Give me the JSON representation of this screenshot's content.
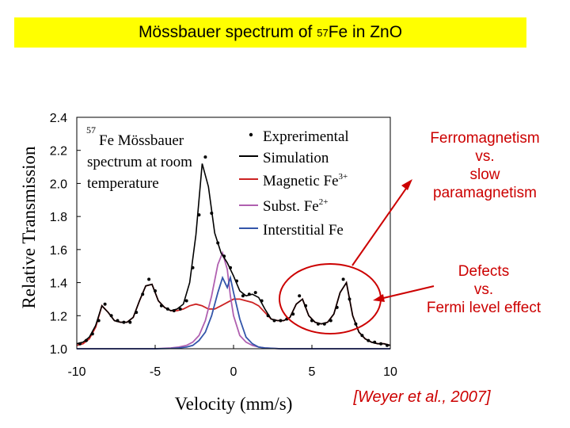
{
  "slide": {
    "title_prefix": "Mössbauer spectrum of ",
    "title_isotope": "57",
    "title_suffix": "Fe in ZnO",
    "callout_top": [
      "Ferromagnetism",
      "vs.",
      "slow",
      "paramagnetism"
    ],
    "callout_bottom": [
      "Defects",
      "vs.",
      "Fermi level effect"
    ],
    "citation": "[Weyer et al., 2007]",
    "colors": {
      "banner": "#ffff00",
      "callout": "#cc0000",
      "arrow": "#cc0000"
    }
  },
  "chart_data": {
    "type": "line",
    "title": "",
    "xlabel": "Velocity (mm/s)",
    "ylabel": "Relative Transmission",
    "xlim": [
      -10,
      10
    ],
    "ylim": [
      1.0,
      2.4
    ],
    "xticks": [
      "-10",
      "-5",
      "0",
      "5",
      "10"
    ],
    "yticks": [
      "1.0",
      "1.2",
      "1.4",
      "1.6",
      "1.8",
      "2.0",
      "2.2",
      "2.4"
    ],
    "annotation": {
      "isotope": "57",
      "line1": "Fe Mössbauer",
      "line2": "spectrum at room",
      "line3": "temperature"
    },
    "legend_position": "top-right",
    "series": [
      {
        "name": "Exprerimental",
        "style": "points",
        "color": "#000000",
        "x": [
          -9.8,
          -9.4,
          -9.0,
          -8.6,
          -8.2,
          -7.8,
          -7.4,
          -7.0,
          -6.6,
          -6.2,
          -5.8,
          -5.4,
          -5.0,
          -4.6,
          -4.2,
          -3.8,
          -3.4,
          -3.0,
          -2.6,
          -2.2,
          -1.8,
          -1.4,
          -1.0,
          -0.6,
          -0.2,
          0.2,
          0.6,
          1.0,
          1.4,
          1.8,
          2.2,
          2.6,
          3.0,
          3.4,
          3.8,
          4.2,
          4.6,
          5.0,
          5.4,
          5.8,
          6.2,
          6.6,
          7.0,
          7.4,
          7.8,
          8.2,
          8.6,
          9.0,
          9.4,
          9.8
        ],
        "y": [
          1.03,
          1.05,
          1.09,
          1.17,
          1.27,
          1.2,
          1.17,
          1.16,
          1.16,
          1.22,
          1.33,
          1.42,
          1.35,
          1.26,
          1.24,
          1.23,
          1.24,
          1.29,
          1.49,
          1.81,
          2.16,
          1.82,
          1.64,
          1.56,
          1.49,
          1.41,
          1.32,
          1.33,
          1.34,
          1.29,
          1.2,
          1.17,
          1.17,
          1.18,
          1.21,
          1.32,
          1.26,
          1.17,
          1.15,
          1.15,
          1.17,
          1.25,
          1.42,
          1.3,
          1.15,
          1.08,
          1.05,
          1.04,
          1.03,
          1.02
        ]
      },
      {
        "name": "Simulation",
        "style": "line",
        "color": "#000000",
        "x": [
          -10,
          -9.6,
          -9.2,
          -8.8,
          -8.4,
          -8.0,
          -7.6,
          -7.2,
          -6.8,
          -6.4,
          -6.0,
          -5.6,
          -5.2,
          -4.8,
          -4.4,
          -4.0,
          -3.6,
          -3.2,
          -2.8,
          -2.4,
          -2.0,
          -1.6,
          -1.2,
          -0.8,
          -0.4,
          0.0,
          0.4,
          0.8,
          1.2,
          1.6,
          2.0,
          2.4,
          2.8,
          3.2,
          3.6,
          4.0,
          4.4,
          4.8,
          5.2,
          5.6,
          6.0,
          6.4,
          6.8,
          7.2,
          7.6,
          8.0,
          8.4,
          8.8,
          9.2,
          9.6,
          10
        ],
        "y": [
          1.03,
          1.04,
          1.07,
          1.14,
          1.26,
          1.22,
          1.17,
          1.16,
          1.16,
          1.19,
          1.29,
          1.38,
          1.39,
          1.29,
          1.25,
          1.23,
          1.24,
          1.27,
          1.4,
          1.69,
          2.12,
          1.98,
          1.7,
          1.58,
          1.52,
          1.44,
          1.35,
          1.32,
          1.33,
          1.31,
          1.24,
          1.18,
          1.17,
          1.17,
          1.19,
          1.27,
          1.3,
          1.2,
          1.16,
          1.15,
          1.16,
          1.21,
          1.34,
          1.4,
          1.2,
          1.1,
          1.06,
          1.04,
          1.03,
          1.03,
          1.02
        ]
      },
      {
        "name": "Magnetic Fe3+",
        "style": "line",
        "color": "#cc2222",
        "x": [
          -10,
          -9.6,
          -9.2,
          -8.8,
          -8.4,
          -8.0,
          -7.6,
          -7.2,
          -6.8,
          -6.4,
          -6.0,
          -5.6,
          -5.2,
          -4.8,
          -4.4,
          -4.0,
          -3.6,
          -3.2,
          -2.8,
          -2.4,
          -2.0,
          -1.6,
          -1.2,
          -0.8,
          -0.4,
          0.0,
          0.4,
          0.8,
          1.2,
          1.6,
          2.0,
          2.4,
          2.8,
          3.2,
          3.6,
          4.0,
          4.4,
          4.8,
          5.2,
          5.6,
          6.0,
          6.4,
          6.8,
          7.2,
          7.6,
          8.0,
          8.4,
          8.8,
          9.2,
          9.6,
          10
        ],
        "y": [
          1.02,
          1.03,
          1.06,
          1.13,
          1.26,
          1.22,
          1.17,
          1.16,
          1.16,
          1.19,
          1.29,
          1.38,
          1.39,
          1.29,
          1.25,
          1.23,
          1.23,
          1.24,
          1.26,
          1.27,
          1.26,
          1.24,
          1.24,
          1.26,
          1.28,
          1.3,
          1.3,
          1.29,
          1.28,
          1.26,
          1.22,
          1.18,
          1.17,
          1.17,
          1.19,
          1.27,
          1.3,
          1.2,
          1.16,
          1.15,
          1.16,
          1.21,
          1.34,
          1.4,
          1.2,
          1.1,
          1.06,
          1.04,
          1.03,
          1.03,
          1.02
        ]
      },
      {
        "name": "Subst. Fe2+",
        "style": "line",
        "color": "#b060b0",
        "x": [
          -10,
          -5,
          -4,
          -3.5,
          -3.0,
          -2.6,
          -2.2,
          -1.8,
          -1.4,
          -1.0,
          -0.7,
          -0.4,
          -0.2,
          0.0,
          0.4,
          0.8,
          1.2,
          1.6,
          2.0,
          3.0,
          5,
          10
        ],
        "y": [
          1.0,
          1.0,
          1.005,
          1.01,
          1.02,
          1.04,
          1.08,
          1.17,
          1.32,
          1.51,
          1.58,
          1.48,
          1.32,
          1.2,
          1.08,
          1.04,
          1.02,
          1.01,
          1.005,
          1.0,
          1.0,
          1.0
        ]
      },
      {
        "name": "Interstitial Fe",
        "style": "line",
        "color": "#3355aa",
        "x": [
          -10,
          -5,
          -4,
          -3.5,
          -3.0,
          -2.6,
          -2.2,
          -1.8,
          -1.4,
          -1.0,
          -0.7,
          -0.4,
          -0.2,
          0.0,
          0.4,
          0.8,
          1.2,
          1.6,
          2.0,
          3.0,
          5,
          10
        ],
        "y": [
          1.0,
          1.0,
          1.002,
          1.005,
          1.01,
          1.02,
          1.05,
          1.1,
          1.2,
          1.34,
          1.43,
          1.37,
          1.43,
          1.34,
          1.18,
          1.07,
          1.03,
          1.01,
          1.005,
          1.0,
          1.0,
          1.0
        ]
      }
    ]
  }
}
